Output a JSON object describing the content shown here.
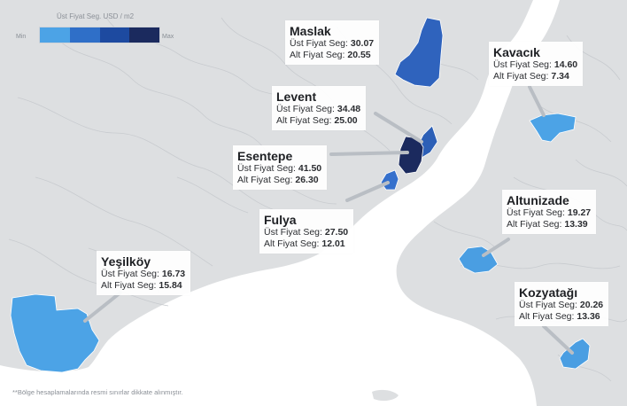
{
  "legend": {
    "title": "Üst Fiyat Seg. USD / m2",
    "min_label": "Min",
    "max_label": "Max",
    "colors": [
      "#4ca3e6",
      "#2f6fc8",
      "#1d4aa0",
      "#1b2a5e"
    ]
  },
  "map_colors": {
    "water": "#ffffff",
    "land": "#dddfe1",
    "district_lines": "#c8cbcf",
    "leader_line": "#b9bec4"
  },
  "regions": [
    {
      "key": "maslak",
      "name": "Maslak",
      "upper_label": "Üst Fiyat Seg:",
      "upper_value": "30.07",
      "lower_label": "Alt Fiyat Seg:",
      "lower_value": "20.55",
      "color": "#2f63bd"
    },
    {
      "key": "levent",
      "name": "Levent",
      "upper_label": "Üst Fiyat Seg:",
      "upper_value": "34.48",
      "lower_label": "Alt Fiyat Seg:",
      "lower_value": "25.00",
      "color": "#2c5fb6"
    },
    {
      "key": "esentepe",
      "name": "Esentepe",
      "upper_label": "Üst Fiyat Seg:",
      "upper_value": "41.50",
      "lower_label": "Alt Fiyat Seg:",
      "lower_value": "26.30",
      "color": "#1b2a5e"
    },
    {
      "key": "fulya",
      "name": "Fulya",
      "upper_label": "Üst Fiyat Seg:",
      "upper_value": "27.50",
      "lower_label": "Alt Fiyat Seg:",
      "lower_value": "12.01",
      "color": "#3570cc"
    },
    {
      "key": "kavacik",
      "name": "Kavacık",
      "upper_label": "Üst Fiyat Seg:",
      "upper_value": "14.60",
      "lower_label": "Alt Fiyat Seg:",
      "lower_value": "7.34",
      "color": "#4ca3e6"
    },
    {
      "key": "altunizade",
      "name": "Altunizade",
      "upper_label": "Üst Fiyat Seg:",
      "upper_value": "19.27",
      "lower_label": "Alt Fiyat Seg:",
      "lower_value": "13.39",
      "color": "#4a9ee2"
    },
    {
      "key": "kozyatagi",
      "name": "Kozyatağı",
      "upper_label": "Üst Fiyat Seg:",
      "upper_value": "20.26",
      "lower_label": "Alt Fiyat Seg:",
      "lower_value": "13.36",
      "color": "#4a9ee2"
    },
    {
      "key": "yesilkoy",
      "name": "Yeşilköy",
      "upper_label": "Üst Fiyat Seg:",
      "upper_value": "16.73",
      "lower_label": "Alt Fiyat Seg:",
      "lower_value": "15.84",
      "color": "#4ca3e6"
    }
  ],
  "footnote": "**Bölge hesaplamalarında resmi sınırlar dikkate alınmıştır."
}
